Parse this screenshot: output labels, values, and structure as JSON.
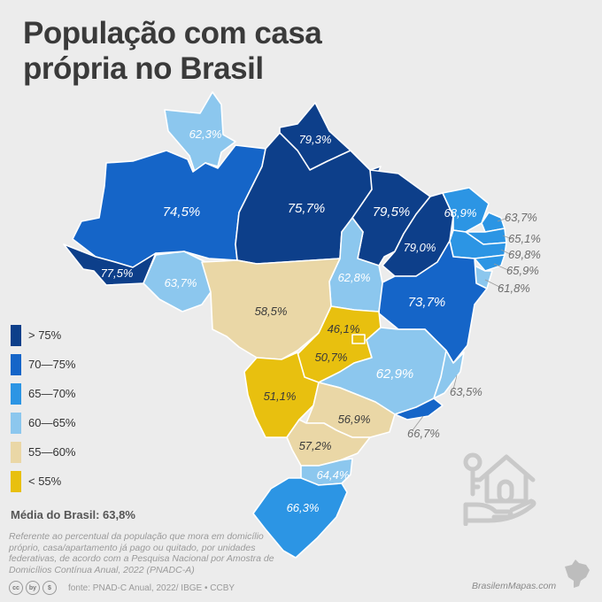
{
  "title": {
    "line1": "População com casa",
    "line2": "própria no Brasil"
  },
  "legend": [
    {
      "label": "> 75%",
      "color": "#0d3f8a"
    },
    {
      "label": "70—75%",
      "color": "#1565c8"
    },
    {
      "label": "65—70%",
      "color": "#2c95e4"
    },
    {
      "label": "60—65%",
      "color": "#8cc7ee"
    },
    {
      "label": "55—60%",
      "color": "#ead7a6"
    },
    {
      "label": "< 55%",
      "color": "#e8c00f"
    }
  ],
  "states": {
    "RR": "62,3%",
    "AP": "79,3%",
    "AM": "74,5%",
    "PA": "75,7%",
    "AC": "77,5%",
    "RO": "63,7%",
    "MA": "79,5%",
    "PI": "79,0%",
    "CE": "68,9%",
    "RN": "63,7%",
    "PB": "65,1%",
    "PE": "69,8%",
    "AL": "65,9%",
    "SE": "61,8%",
    "TO": "62,8%",
    "BA": "73,7%",
    "MT": "58,5%",
    "DF": "46,1%",
    "GO": "50,7%",
    "MG": "62,9%",
    "ES": "63,5%",
    "MS": "51,1%",
    "SP": "56,9%",
    "RJ": "66,7%",
    "PR": "57,2%",
    "SC": "64,4%",
    "RS": "66,3%"
  },
  "average": "Média do Brasil: 63,8%",
  "note": "Referente ao percentual da população que mora em domicílio próprio, casa/apartamento já pago ou quitado, por unidades federativas, de acordo com a Pesquisa Nacional por Amostra de Domicílios Contínua Anual, 2022 (PNADC-A)",
  "footer": {
    "license_icons": [
      "cc",
      "by",
      "$"
    ],
    "source": "fonte: PNAD-C Anual, 2022/ IBGE • CCBY",
    "brand": "BrasilemMapas.com"
  }
}
